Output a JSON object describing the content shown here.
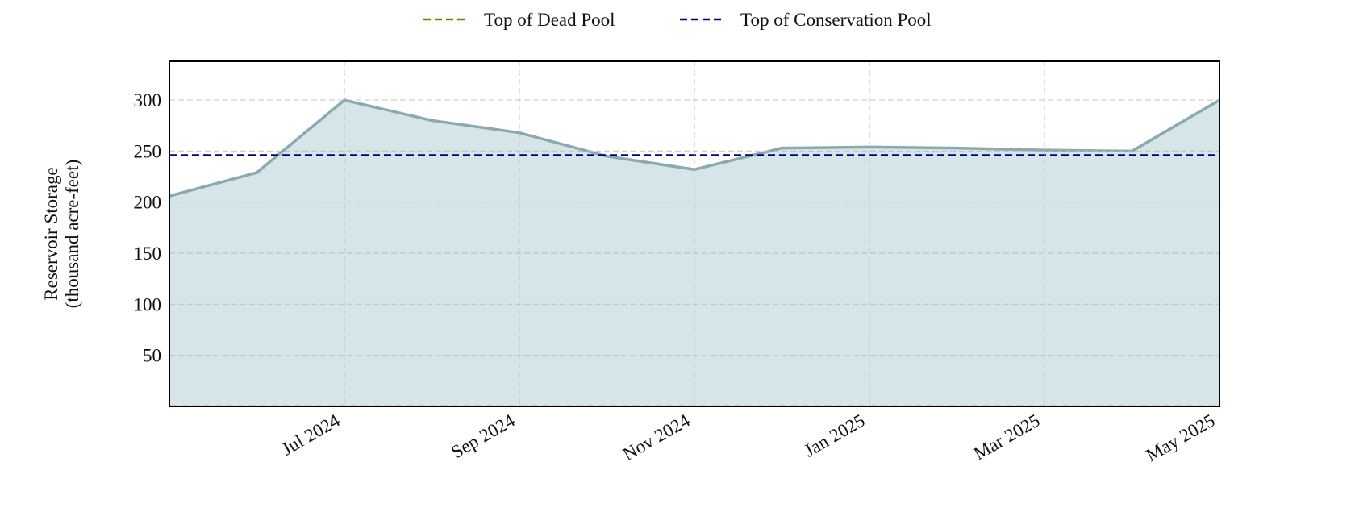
{
  "chart_data": {
    "type": "area",
    "y_label": "Reservoir Storage",
    "y_label_unit": "(thousand acre-feet)",
    "x": [
      "2024-05",
      "2024-06",
      "2024-07",
      "2024-08",
      "2024-09",
      "2024-10",
      "2024-11",
      "2024-12",
      "2025-01",
      "2025-02",
      "2025-03",
      "2025-04",
      "2025-05"
    ],
    "series": [
      {
        "color": "#8aa9b0",
        "fill": "#d6e5e7",
        "values": [
          206,
          229,
          300,
          280,
          268,
          245,
          232,
          253,
          254,
          253,
          251,
          250,
          300
        ]
      }
    ],
    "reference_lines": [
      {
        "name": "Top of Dead Pool",
        "color": "#808000",
        "value": 0
      },
      {
        "name": "Top of Conservation Pool",
        "color": "#00007f",
        "value": 246
      }
    ],
    "xlim": [
      "2024-05",
      "2025-05"
    ],
    "xticks": [
      {
        "value": "2024-07",
        "label": "Jul 2024"
      },
      {
        "value": "2024-09",
        "label": "Sep 2024"
      },
      {
        "value": "2024-11",
        "label": "Nov 2024"
      },
      {
        "value": "2025-01",
        "label": "Jan 2025"
      },
      {
        "value": "2025-03",
        "label": "Mar 2025"
      },
      {
        "value": "2025-05",
        "label": "May 2025"
      }
    ],
    "ylim": [
      0,
      338
    ],
    "yticks": [
      50,
      100,
      150,
      200,
      250,
      300
    ],
    "grid": true
  }
}
